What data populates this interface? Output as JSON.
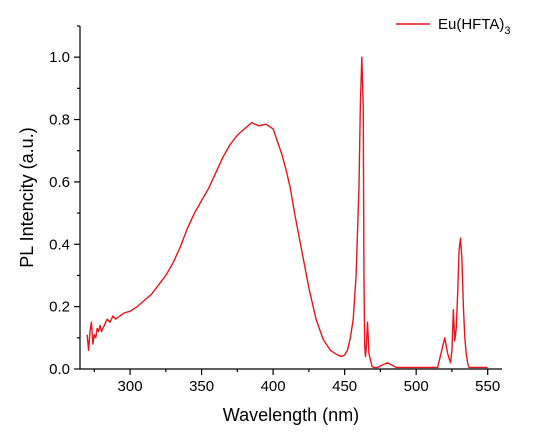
{
  "chart_data": {
    "type": "line",
    "title": "",
    "xlabel": "Wavelength (nm)",
    "ylabel": "PL Intencity (a.u.)",
    "xlim": [
      265,
      560
    ],
    "ylim": [
      0,
      1.1
    ],
    "x_ticks": [
      300,
      350,
      400,
      450,
      500,
      550
    ],
    "y_ticks": [
      0.0,
      0.2,
      0.4,
      0.6,
      0.8,
      1.0
    ],
    "x_tick_labels": [
      "300",
      "350",
      "400",
      "450",
      "500",
      "550"
    ],
    "y_tick_labels": [
      "0.0",
      "0.2",
      "0.4",
      "0.6",
      "0.8",
      "1.0"
    ],
    "grid": false,
    "legend_position": "top-right",
    "series": [
      {
        "name": "Eu(HFTA)",
        "name_subscript": "3",
        "color": "#e8161c",
        "x": [
          270,
          271,
          272,
          273,
          274,
          275,
          276,
          277,
          278,
          279,
          280,
          282,
          284,
          286,
          288,
          290,
          293,
          296,
          300,
          305,
          310,
          315,
          320,
          325,
          330,
          335,
          340,
          345,
          350,
          355,
          360,
          365,
          370,
          375,
          380,
          385,
          390,
          395,
          400,
          403,
          406,
          409,
          412,
          415,
          420,
          425,
          430,
          435,
          440,
          445,
          448,
          450,
          452,
          454,
          456,
          458,
          460,
          461,
          462,
          463,
          463.5,
          464,
          464.5,
          465,
          466,
          467,
          468,
          469,
          470,
          471,
          472,
          473,
          475,
          480,
          484,
          486,
          488,
          490,
          495,
          500,
          505,
          510,
          515,
          520,
          522,
          524,
          525,
          526,
          527,
          528,
          529,
          530,
          531,
          532,
          533,
          534,
          535,
          536,
          536.5,
          537,
          537.5,
          538,
          539,
          540,
          541,
          543,
          545,
          550
        ],
        "values": [
          0.11,
          0.06,
          0.12,
          0.15,
          0.08,
          0.11,
          0.1,
          0.13,
          0.12,
          0.14,
          0.12,
          0.14,
          0.16,
          0.15,
          0.17,
          0.16,
          0.17,
          0.18,
          0.185,
          0.2,
          0.22,
          0.24,
          0.27,
          0.3,
          0.34,
          0.39,
          0.45,
          0.5,
          0.54,
          0.58,
          0.63,
          0.68,
          0.72,
          0.75,
          0.77,
          0.79,
          0.78,
          0.785,
          0.77,
          0.73,
          0.69,
          0.64,
          0.58,
          0.5,
          0.38,
          0.26,
          0.16,
          0.095,
          0.06,
          0.045,
          0.04,
          0.045,
          0.06,
          0.1,
          0.16,
          0.3,
          0.58,
          0.85,
          1.0,
          0.84,
          0.3,
          0.08,
          0.04,
          0.06,
          0.15,
          0.05,
          0.03,
          0.01,
          0.005,
          0.005,
          0.005,
          0.005,
          0.01,
          0.02,
          0.01,
          0.005,
          0.005,
          0.005,
          0.005,
          0.005,
          0.005,
          0.005,
          0.005,
          0.1,
          0.05,
          0.02,
          0.06,
          0.19,
          0.09,
          0.13,
          0.24,
          0.38,
          0.42,
          0.35,
          0.2,
          0.1,
          0.05,
          0.02,
          0.01,
          0.005,
          0.005,
          0.005,
          0.005,
          0.005,
          0.005,
          0.005,
          0.005,
          0.005
        ]
      }
    ]
  }
}
